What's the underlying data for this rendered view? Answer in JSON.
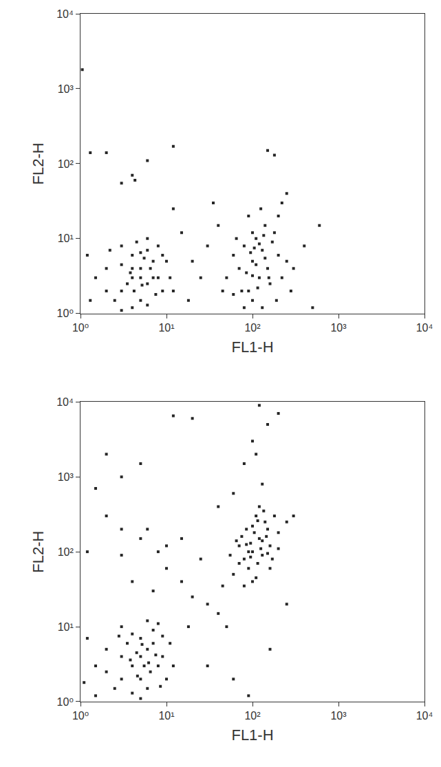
{
  "chart_data": [
    {
      "type": "scatter",
      "x_label": "FL1-H",
      "y_label": "FL2-H",
      "log": true,
      "grid": false,
      "color": "#000000",
      "marker": "square",
      "xlim": [
        1,
        10000
      ],
      "ylim": [
        1,
        10000
      ],
      "xticks": [
        {
          "value": 1,
          "label": "10⁰"
        },
        {
          "value": 10,
          "label": "10¹"
        },
        {
          "value": 100,
          "label": "10²"
        },
        {
          "value": 1000,
          "label": "10³"
        },
        {
          "value": 10000,
          "label": "10⁴"
        }
      ],
      "yticks": [
        {
          "value": 1,
          "label": "10⁰"
        },
        {
          "value": 10,
          "label": "10¹"
        },
        {
          "value": 100,
          "label": "10²"
        },
        {
          "value": 1000,
          "label": "10³"
        },
        {
          "value": 10000,
          "label": "10⁴"
        }
      ],
      "x": [
        3,
        4,
        5,
        6,
        7,
        5,
        4,
        3,
        2,
        6,
        8,
        9,
        5,
        4,
        3.5,
        6.5,
        7.5,
        2.5,
        1.5,
        1.2,
        10,
        11,
        4.5,
        5.5,
        3,
        6,
        8,
        2,
        1.3,
        4,
        7,
        5,
        9,
        12,
        3,
        2.2,
        6,
        4.2,
        5.2,
        3.8,
        100,
        120,
        80,
        150,
        90,
        200,
        110,
        70,
        130,
        160,
        100,
        250,
        60,
        180,
        140,
        90,
        110,
        120,
        75,
        220,
        300,
        50,
        100,
        130,
        170,
        95,
        85,
        115,
        140,
        200,
        65,
        105,
        125,
        155,
        280,
        190,
        80,
        135,
        100,
        60,
        20,
        30,
        15,
        25,
        40,
        12,
        35,
        4,
        3,
        2,
        1.3,
        1.05,
        6,
        12,
        150,
        180,
        600,
        400,
        45,
        18,
        4.3,
        250,
        220,
        500
      ],
      "values": [
        2,
        3,
        4,
        2.5,
        5,
        1.5,
        6,
        8,
        4,
        7,
        3,
        2,
        3,
        1.2,
        2.5,
        4,
        1.8,
        1.5,
        3,
        6,
        5,
        3,
        9,
        5.5,
        4.5,
        1.3,
        8,
        2,
        1.5,
        4,
        3,
        6.5,
        6,
        2,
        1.1,
        7,
        10,
        2,
        2.4,
        3.5,
        5,
        3,
        8,
        4,
        2,
        6,
        10,
        4,
        7,
        2.5,
        1.5,
        5,
        6,
        12,
        15,
        20,
        4.5,
        8.5,
        2,
        3,
        4,
        3,
        12,
        1.2,
        9,
        6.5,
        3.5,
        2.2,
        5.5,
        20,
        10,
        7.5,
        25,
        3,
        2,
        1.5,
        1.2,
        11,
        3.2,
        1.8,
        5,
        8,
        12,
        3,
        15,
        25,
        30,
        70,
        55,
        140,
        140,
        1800,
        110,
        170,
        150,
        130,
        15,
        8,
        2,
        1.5,
        60,
        40,
        30,
        1.2
      ]
    },
    {
      "type": "scatter",
      "x_label": "FL1-H",
      "y_label": "FL2-H",
      "log": true,
      "grid": false,
      "color": "#000000",
      "marker": "square",
      "xlim": [
        1,
        10000
      ],
      "ylim": [
        1,
        10000
      ],
      "xticks": [
        {
          "value": 1,
          "label": "10⁰"
        },
        {
          "value": 10,
          "label": "10¹"
        },
        {
          "value": 100,
          "label": "10²"
        },
        {
          "value": 1000,
          "label": "10³"
        },
        {
          "value": 10000,
          "label": "10⁴"
        }
      ],
      "yticks": [
        {
          "value": 1,
          "label": "10⁰"
        },
        {
          "value": 10,
          "label": "10¹"
        },
        {
          "value": 100,
          "label": "10²"
        },
        {
          "value": 1000,
          "label": "10³"
        },
        {
          "value": 10000,
          "label": "10⁴"
        }
      ],
      "x": [
        5,
        4,
        6,
        3,
        7,
        5,
        4,
        8,
        2,
        6,
        3,
        5,
        9,
        10,
        2.5,
        1.5,
        1.2,
        7,
        4.5,
        5.5,
        3.5,
        6.5,
        8,
        1.5,
        11,
        3,
        5,
        6,
        2,
        4,
        7.5,
        9,
        3.8,
        5.2,
        2.8,
        6.2,
        1.1,
        12,
        4.6,
        8.5,
        100,
        120,
        80,
        150,
        90,
        110,
        70,
        130,
        200,
        60,
        100,
        140,
        160,
        85,
        115,
        95,
        180,
        75,
        125,
        250,
        55,
        105,
        135,
        90,
        170,
        110,
        65,
        145,
        200,
        80,
        120,
        100,
        160,
        70,
        300,
        130,
        95,
        115,
        150,
        85,
        100,
        150,
        120,
        200,
        80,
        130,
        110,
        20,
        12,
        5,
        3,
        1.5,
        2,
        2,
        3,
        5,
        8,
        10,
        15,
        20,
        30,
        40,
        25,
        15,
        3,
        1.2,
        50,
        30,
        60,
        90,
        18,
        7,
        4,
        6,
        10,
        45,
        250,
        160,
        40,
        60
      ],
      "values": [
        4,
        3,
        5,
        2,
        6,
        2,
        8,
        3,
        5,
        1.5,
        10,
        7,
        4,
        2,
        1.5,
        3,
        7,
        9,
        4.5,
        3,
        6,
        2.5,
        11,
        1.2,
        6,
        4,
        1.1,
        12,
        2.5,
        1.3,
        4.2,
        7.5,
        3.6,
        5.8,
        7.5,
        3.3,
        1.8,
        3,
        2.2,
        1.6,
        100,
        150,
        80,
        200,
        60,
        300,
        120,
        90,
        180,
        50,
        40,
        250,
        120,
        200,
        70,
        130,
        300,
        160,
        110,
        250,
        90,
        180,
        350,
        100,
        80,
        45,
        140,
        160,
        110,
        35,
        400,
        220,
        60,
        70,
        300,
        140,
        85,
        260,
        95,
        125,
        3000,
        5000,
        9000,
        7000,
        1500,
        800,
        2000,
        6000,
        6500,
        1500,
        1000,
        700,
        2000,
        300,
        200,
        150,
        100,
        60,
        40,
        25,
        20,
        15,
        80,
        150,
        90,
        100,
        10,
        3,
        2,
        1.2,
        10,
        30,
        40,
        200,
        120,
        35,
        20,
        5,
        400,
        600
      ]
    }
  ]
}
